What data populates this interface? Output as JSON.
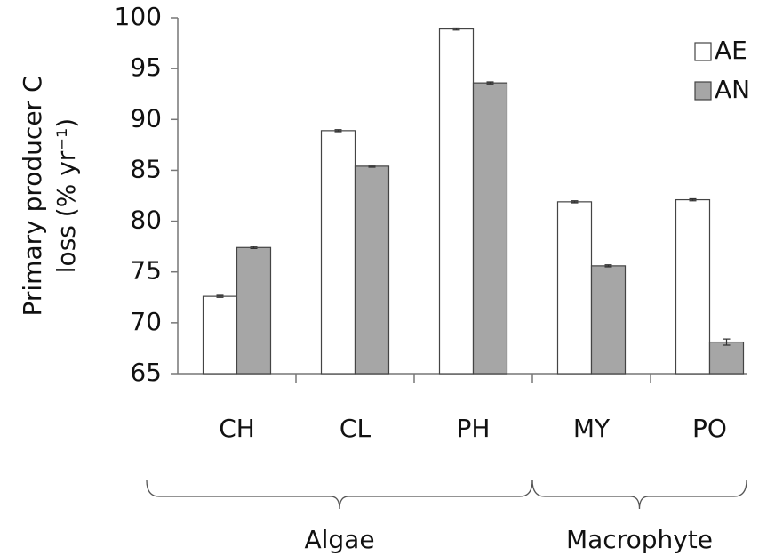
{
  "chart_data": {
    "type": "bar",
    "y_label": [
      "Primary producer C",
      "loss (% yr⁻¹)"
    ],
    "categories": [
      "CH",
      "CL",
      "PH",
      "MY",
      "PO"
    ],
    "series": [
      {
        "name": "AE",
        "color": "#ffffff",
        "values": [
          72.6,
          88.9,
          98.9,
          81.9,
          82.1
        ],
        "errors": [
          0.1,
          0.1,
          0.1,
          0.1,
          0.1
        ]
      },
      {
        "name": "AN",
        "color": "#a6a6a6",
        "values": [
          77.4,
          85.4,
          93.6,
          75.6,
          68.1
        ],
        "errors": [
          0.1,
          0.1,
          0.1,
          0.1,
          0.3
        ]
      }
    ],
    "groups": [
      {
        "label": "Algae",
        "count": 3
      },
      {
        "label": "Macrophyte",
        "count": 2
      }
    ],
    "ylim": [
      65,
      100
    ],
    "yticks": [
      65,
      70,
      75,
      80,
      85,
      90,
      95,
      100
    ],
    "legend": "top-right",
    "grid": false
  }
}
